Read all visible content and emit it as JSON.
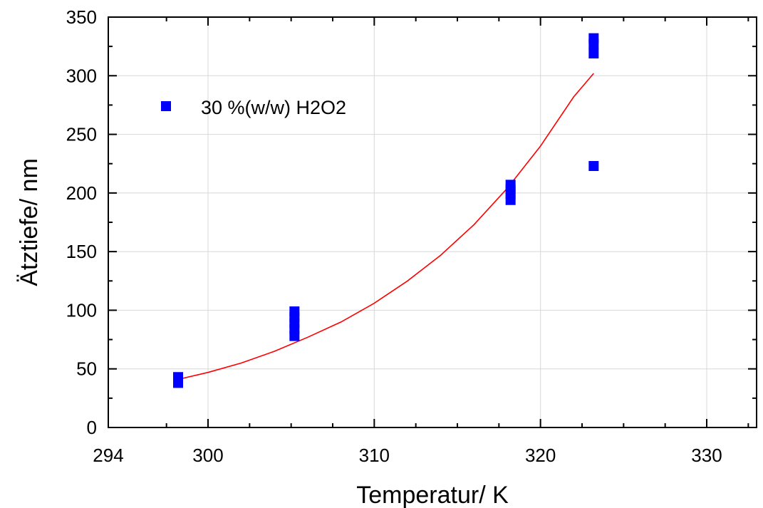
{
  "chart_data": {
    "type": "scatter",
    "title": "",
    "xlabel": "Temperatur/ K",
    "ylabel": "Ätztiefe/ nm",
    "xlim": [
      294,
      333
    ],
    "ylim": [
      0,
      350
    ],
    "xticks": [
      294,
      300,
      310,
      320,
      330
    ],
    "yticks": [
      0,
      50,
      100,
      150,
      200,
      250,
      300,
      350
    ],
    "grid": true,
    "legend_position": "top-left",
    "series": [
      {
        "name": "30 %(w/w) H2O2",
        "color": "#0000ff",
        "marker": "square",
        "points": [
          {
            "x": 298.2,
            "y": 38
          },
          {
            "x": 298.2,
            "y": 43
          },
          {
            "x": 305.2,
            "y": 78
          },
          {
            "x": 305.2,
            "y": 84
          },
          {
            "x": 305.2,
            "y": 89
          },
          {
            "x": 305.2,
            "y": 94
          },
          {
            "x": 305.2,
            "y": 99
          },
          {
            "x": 318.2,
            "y": 194
          },
          {
            "x": 318.2,
            "y": 199
          },
          {
            "x": 318.2,
            "y": 203
          },
          {
            "x": 318.2,
            "y": 207
          },
          {
            "x": 323.2,
            "y": 223
          },
          {
            "x": 323.2,
            "y": 319
          },
          {
            "x": 323.2,
            "y": 327
          },
          {
            "x": 323.2,
            "y": 332
          }
        ]
      }
    ],
    "fit": {
      "type": "exponential",
      "color": "#ff0000",
      "x": [
        298.2,
        300,
        302,
        304,
        306,
        308,
        310,
        312,
        314,
        316,
        318,
        320,
        322,
        323.2
      ],
      "y": [
        41,
        47,
        55,
        65,
        77,
        90,
        106,
        125,
        147,
        173,
        204,
        240,
        282,
        302
      ]
    }
  }
}
